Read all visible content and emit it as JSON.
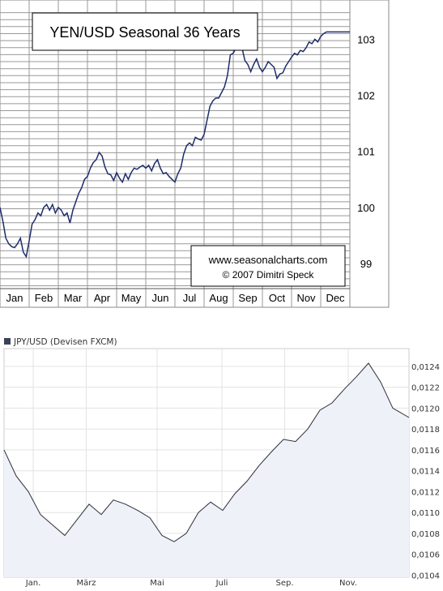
{
  "chart_data": [
    {
      "type": "line",
      "title": "YEN/USD Seasonal 36 Years",
      "credit_line1": "www.seasonalcharts.com",
      "credit_line2": "© 2007   Dimitri Speck",
      "categories": [
        "Jan",
        "Feb",
        "Mar",
        "Apr",
        "May",
        "Jun",
        "Jul",
        "Aug",
        "Sep",
        "Oct",
        "Nov",
        "Dec"
      ],
      "yticks": [
        "99",
        "100",
        "101",
        "102",
        "103"
      ],
      "ylim": [
        98.55,
        103.7
      ],
      "grid": true,
      "x": [
        0,
        0.1,
        0.2,
        0.3,
        0.4,
        0.5,
        0.6,
        0.7,
        0.8,
        0.9,
        1.0,
        1.1,
        1.2,
        1.3,
        1.4,
        1.5,
        1.6,
        1.7,
        1.8,
        1.9,
        2.0,
        2.1,
        2.2,
        2.3,
        2.4,
        2.5,
        2.6,
        2.7,
        2.8,
        2.9,
        3.0,
        3.1,
        3.2,
        3.3,
        3.4,
        3.5,
        3.6,
        3.7,
        3.8,
        3.9,
        4.0,
        4.1,
        4.2,
        4.3,
        4.4,
        4.5,
        4.6,
        4.7,
        4.8,
        4.9,
        5.0,
        5.1,
        5.2,
        5.3,
        5.4,
        5.5,
        5.6,
        5.7,
        5.8,
        5.9,
        6.0,
        6.1,
        6.2,
        6.3,
        6.4,
        6.5,
        6.6,
        6.7,
        6.8,
        6.9,
        7.0,
        7.1,
        7.2,
        7.3,
        7.4,
        7.5,
        7.6,
        7.7,
        7.8,
        7.9,
        8.0,
        8.1,
        8.2,
        8.3,
        8.4,
        8.5,
        8.6,
        8.7,
        8.8,
        8.9,
        9.0,
        9.1,
        9.2,
        9.3,
        9.4,
        9.5,
        9.6,
        9.7,
        9.8,
        9.9,
        10.0,
        10.1,
        10.2,
        10.3,
        10.4,
        10.5,
        10.6,
        10.7,
        10.8,
        10.9,
        11.0,
        11.1,
        11.2,
        11.3,
        11.4,
        11.5,
        11.6,
        11.7,
        11.8,
        11.9,
        12.0
      ],
      "values": [
        100.0,
        99.75,
        99.45,
        99.35,
        99.3,
        99.28,
        99.35,
        99.45,
        99.2,
        99.12,
        99.4,
        99.7,
        99.78,
        99.9,
        99.85,
        100.0,
        100.05,
        99.95,
        100.05,
        99.9,
        100.0,
        99.95,
        99.85,
        99.9,
        99.72,
        99.95,
        100.1,
        100.25,
        100.35,
        100.5,
        100.55,
        100.7,
        100.8,
        100.85,
        100.98,
        100.92,
        100.72,
        100.6,
        100.58,
        100.48,
        100.62,
        100.52,
        100.45,
        100.6,
        100.5,
        100.62,
        100.7,
        100.68,
        100.72,
        100.75,
        100.7,
        100.75,
        100.65,
        100.78,
        100.85,
        100.7,
        100.6,
        100.62,
        100.55,
        100.5,
        100.45,
        100.6,
        100.7,
        100.95,
        101.1,
        101.15,
        101.1,
        101.25,
        101.22,
        101.2,
        101.3,
        101.55,
        101.8,
        101.9,
        101.95,
        101.95,
        102.05,
        102.15,
        102.35,
        102.72,
        102.75,
        102.85,
        102.9,
        102.85,
        102.62,
        102.55,
        102.42,
        102.55,
        102.65,
        102.5,
        102.42,
        102.5,
        102.6,
        102.55,
        102.5,
        102.3,
        102.38,
        102.4,
        102.52,
        102.6,
        102.68,
        102.75,
        102.72,
        102.8,
        102.78,
        102.85,
        102.95,
        102.92,
        103.0,
        102.95,
        103.05,
        103.1,
        103.13,
        103.13,
        103.13,
        103.13,
        103.13,
        103.13,
        103.13,
        103.13,
        103.13
      ]
    },
    {
      "type": "area",
      "series_name": "JPY/USD (Devisen FXCM)",
      "xticks": [
        "Jan.",
        "März",
        "Mai",
        "Juli",
        "Sep.",
        "Nov."
      ],
      "yticks": [
        "0,0104",
        "0,0106",
        "0,0108",
        "0,0110",
        "0,0112",
        "0,0114",
        "0,0116",
        "0,0118",
        "0,0120",
        "0,0122",
        "0,0124"
      ],
      "ylim": [
        0.01038,
        0.01257
      ],
      "grid": true,
      "colors": {
        "line": "#2d2d3a",
        "fill": "#eef1f8",
        "legend_swatch": "#3a4258"
      },
      "x": [
        0,
        0.03,
        0.06,
        0.09,
        0.12,
        0.15,
        0.18,
        0.21,
        0.24,
        0.27,
        0.3,
        0.33,
        0.36,
        0.39,
        0.42,
        0.45,
        0.48,
        0.51,
        0.54,
        0.57,
        0.6,
        0.63,
        0.66,
        0.69,
        0.72,
        0.75,
        0.78,
        0.81,
        0.84,
        0.87,
        0.9,
        0.93,
        0.96,
        1.0
      ],
      "values": [
        0.0116,
        0.01135,
        0.0112,
        0.01098,
        0.01088,
        0.01078,
        0.01093,
        0.01108,
        0.01098,
        0.01112,
        0.01108,
        0.01102,
        0.01095,
        0.01078,
        0.01072,
        0.0108,
        0.011,
        0.0111,
        0.01102,
        0.01118,
        0.0113,
        0.01145,
        0.01158,
        0.0117,
        0.01168,
        0.0118,
        0.01198,
        0.01205,
        0.01218,
        0.0123,
        0.01243,
        0.01225,
        0.012,
        0.01191
      ]
    }
  ]
}
